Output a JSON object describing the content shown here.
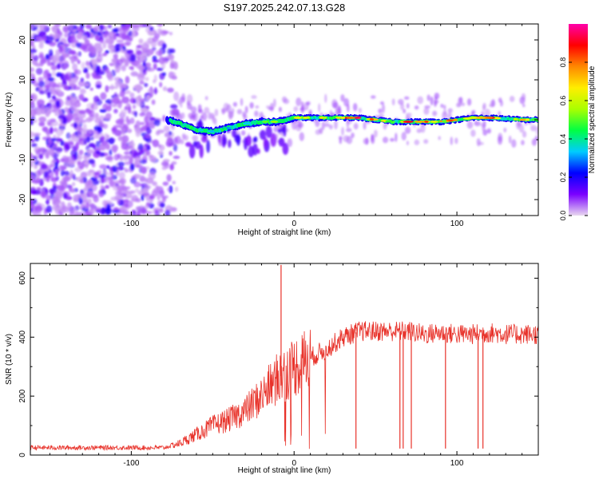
{
  "title": "S197.2025.242.07.13.G28",
  "chart_data": [
    {
      "type": "heatmap",
      "xlabel": "Height of straight line (km)",
      "ylabel": "Frequency (Hz)",
      "xlim": [
        -162,
        150
      ],
      "ylim": [
        -24,
        24
      ],
      "xticks": [
        -100,
        0,
        100
      ],
      "yticks": [
        -20,
        -10,
        0,
        10,
        20
      ],
      "colorbar": {
        "label": "Normalized spectral amplitude",
        "range": [
          0.0,
          1.0
        ],
        "ticks": [
          0.0,
          0.2,
          0.4,
          0.6,
          0.8
        ],
        "colors": [
          "#e8d8f0",
          "#7a00ff",
          "#0000ff",
          "#00ccff",
          "#00ff44",
          "#aaff00",
          "#ffee00",
          "#ff8800",
          "#ff0000",
          "#ff00aa"
        ]
      },
      "ridge": {
        "x": [
          -78,
          -70,
          -60,
          -50,
          -40,
          -30,
          -20,
          -10,
          0,
          10,
          20,
          30,
          40,
          50,
          60,
          70,
          80,
          90,
          100,
          110,
          120,
          130,
          140,
          150
        ],
        "frequency": [
          0,
          -1,
          -2.5,
          -3,
          -2,
          -1,
          -0.5,
          -0.5,
          0.5,
          0.5,
          0.5,
          0.5,
          0.5,
          0,
          -0.5,
          -0.5,
          -0.5,
          -0.5,
          0,
          0.5,
          0.5,
          0.3,
          0,
          0
        ],
        "amplitude": [
          0.3,
          0.35,
          0.45,
          0.45,
          0.4,
          0.35,
          0.45,
          0.5,
          0.6,
          0.8,
          0.85,
          0.8,
          0.9,
          0.75,
          0.6,
          0.85,
          0.8,
          0.7,
          0.75,
          0.6,
          0.85,
          0.8,
          0.7,
          0.6
        ]
      }
    },
    {
      "type": "line",
      "xlabel": "Height of straight line (km)",
      "ylabel": "SNR (10 * v/v)",
      "xlim": [
        -162,
        150
      ],
      "ylim": [
        0,
        650
      ],
      "xticks": [
        -100,
        0,
        100
      ],
      "yticks": [
        0,
        200,
        400,
        600
      ],
      "series": [
        {
          "name": "SNR",
          "color": "#e8322a",
          "x": [
            -162,
            -120,
            -80,
            -70,
            -60,
            -50,
            -40,
            -30,
            -20,
            -10,
            -5,
            0,
            10,
            20,
            30,
            40,
            50,
            60,
            70,
            80,
            90,
            100,
            110,
            120,
            130,
            140,
            150
          ],
          "y": [
            25,
            25,
            25,
            40,
            70,
            100,
            120,
            150,
            200,
            260,
            280,
            300,
            330,
            360,
            400,
            420,
            420,
            420,
            420,
            410,
            415,
            410,
            410,
            415,
            410,
            410,
            410
          ]
        }
      ],
      "spikes": [
        {
          "x": -8,
          "y": 645,
          "dir": "up"
        },
        {
          "x": 38,
          "y": 22,
          "dir": "down"
        },
        {
          "x": 65,
          "y": 22,
          "dir": "down"
        },
        {
          "x": 67,
          "y": 22,
          "dir": "down"
        },
        {
          "x": 72,
          "y": 22,
          "dir": "down"
        },
        {
          "x": 93,
          "y": 22,
          "dir": "down"
        },
        {
          "x": 113,
          "y": 22,
          "dir": "down"
        },
        {
          "x": 116,
          "y": 22,
          "dir": "down"
        }
      ]
    }
  ]
}
